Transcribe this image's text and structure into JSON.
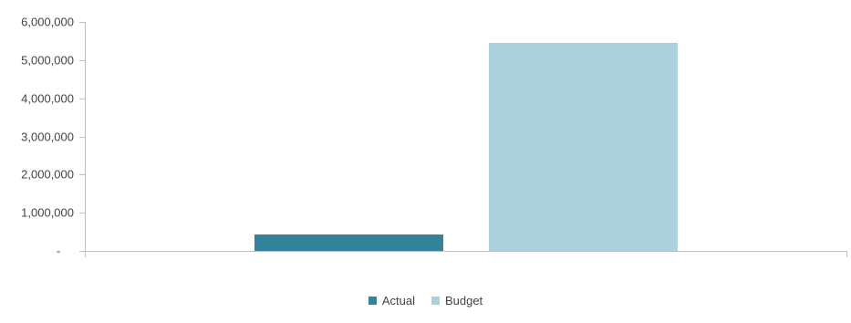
{
  "chart_data": {
    "type": "bar",
    "categories": [
      ""
    ],
    "series": [
      {
        "name": "Actual",
        "values": [
          430000
        ],
        "color": "#31849b"
      },
      {
        "name": "Budget",
        "values": [
          5450000
        ],
        "color": "#acd0dc"
      }
    ],
    "title": "",
    "xlabel": "",
    "ylabel": "",
    "ylim": [
      0,
      6000000
    ],
    "yticks": [
      0,
      1000000,
      2000000,
      3000000,
      4000000,
      5000000,
      6000000
    ],
    "ytick_labels": [
      "-",
      "1,000,000",
      "2,000,000",
      "3,000,000",
      "4,000,000",
      "5,000,000",
      "6,000,000"
    ],
    "grid": false,
    "legend": "bottom"
  }
}
